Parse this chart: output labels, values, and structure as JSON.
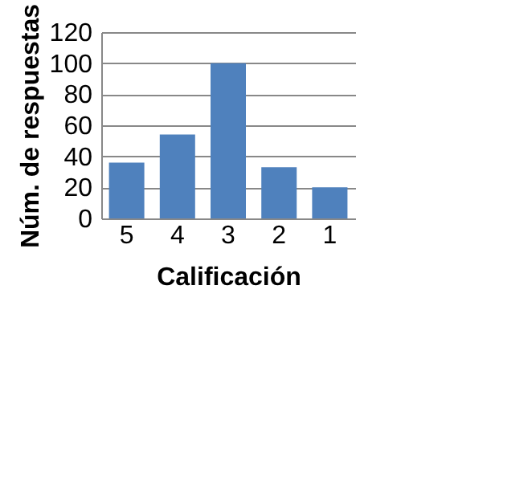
{
  "chart_data": {
    "type": "bar",
    "xlabel": "Calificación",
    "ylabel": "Núm. de respuestas",
    "categories": [
      "5",
      "4",
      "3",
      "2",
      "1"
    ],
    "values": [
      36,
      54,
      100,
      33,
      20
    ],
    "color": "#4f81bd",
    "ylim": [
      0,
      120
    ],
    "yticks": [
      0,
      20,
      40,
      60,
      80,
      100,
      120
    ],
    "grid": "y"
  }
}
